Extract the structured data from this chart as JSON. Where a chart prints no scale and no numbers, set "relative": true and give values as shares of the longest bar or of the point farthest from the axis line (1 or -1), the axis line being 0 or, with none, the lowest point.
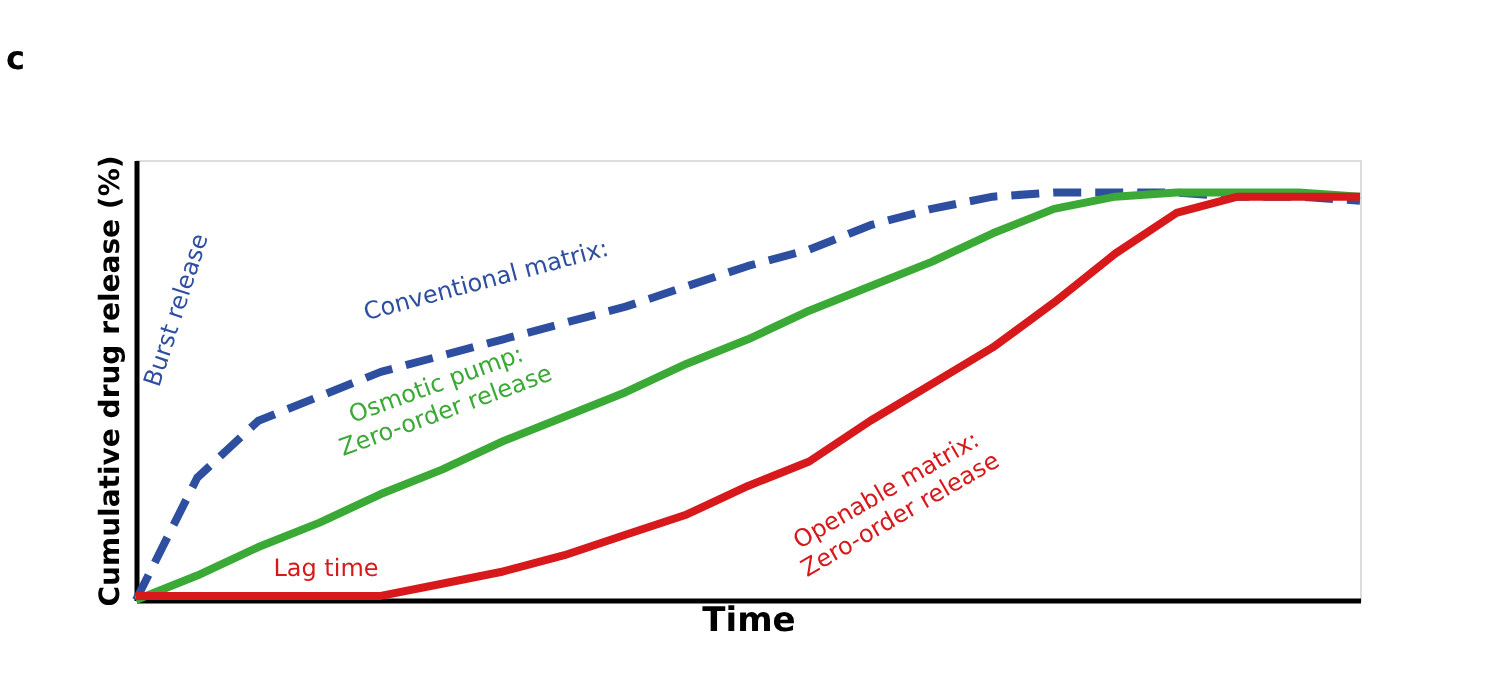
{
  "chart_data": {
    "type": "line",
    "title": "c",
    "xlabel": "Time",
    "ylabel": "Cumulative drug release (%)",
    "relative": true,
    "grid": false,
    "marker": "none",
    "categories": [
      null,
      null,
      null,
      null,
      null,
      null,
      null,
      null,
      null,
      null,
      null,
      null,
      null,
      null,
      null,
      null,
      null,
      null,
      null,
      null,
      null
    ],
    "series": [
      {
        "name": "Conventional matrix:",
        "color": "#2e4fa0",
        "line_style": "dashed",
        "values": [
          0,
          0.3,
          0.44,
          0.5,
          0.56,
          0.6,
          0.64,
          0.68,
          0.72,
          0.77,
          0.82,
          0.86,
          0.92,
          0.96,
          0.99,
          1.0,
          1.0,
          1.0,
          0.99,
          0.99,
          0.98
        ]
      },
      {
        "name": "Osmotic pump:\nZero-order release",
        "color": "#3aa935",
        "line_style": "solid",
        "values": [
          0,
          0.06,
          0.13,
          0.19,
          0.26,
          0.32,
          0.39,
          0.45,
          0.51,
          0.58,
          0.64,
          0.71,
          0.77,
          0.83,
          0.9,
          0.96,
          0.99,
          1.0,
          1.0,
          1.0,
          0.99
        ]
      },
      {
        "name": "Openable matrix:\nZero-order release",
        "color": "#d7191c",
        "line_style": "solid",
        "values": [
          0.01,
          0.01,
          0.01,
          0.01,
          0.01,
          0.04,
          0.07,
          0.11,
          0.16,
          0.21,
          0.28,
          0.34,
          0.44,
          0.53,
          0.62,
          0.73,
          0.85,
          0.95,
          0.99,
          0.99,
          0.99
        ]
      }
    ],
    "annotations": [
      "Burst release",
      "Lag time"
    ]
  }
}
